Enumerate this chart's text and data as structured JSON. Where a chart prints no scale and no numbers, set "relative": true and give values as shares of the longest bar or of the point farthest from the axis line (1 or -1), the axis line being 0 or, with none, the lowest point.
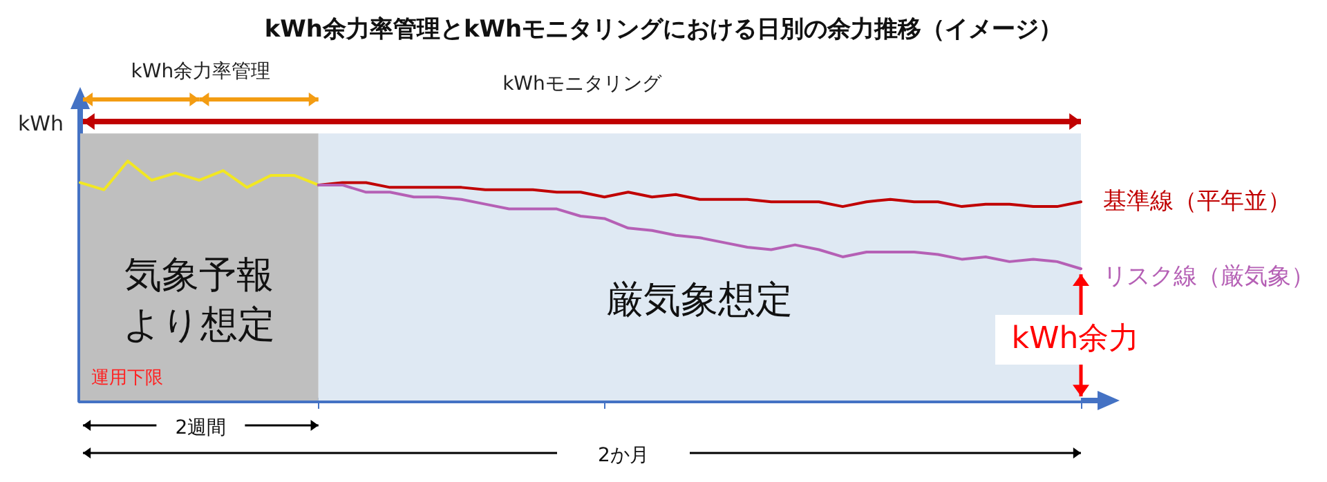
{
  "chart_data": {
    "type": "line",
    "title": "kWh余力率管理とkWhモニタリングにおける日別の余力推移（イメージ）",
    "ylabel": "kWh",
    "relative": true,
    "grid": false,
    "legend": "right",
    "marker": "none",
    "line_style": "solid",
    "categories": [
      null,
      null,
      null,
      null,
      null,
      null,
      null,
      null,
      null,
      null,
      null,
      null,
      null,
      null,
      null,
      null,
      null,
      null,
      null,
      null,
      null,
      null,
      null,
      null,
      null,
      null,
      null,
      null,
      null,
      null,
      null,
      null,
      null,
      null,
      null,
      null,
      null,
      null,
      null,
      null,
      null,
      null,
      null
    ],
    "series": [
      {
        "color": "#f2e722",
        "values": [
          0.91,
          0.88,
          1.0,
          0.92,
          0.95,
          0.92,
          0.96,
          0.89,
          0.94,
          0.94,
          0.9,
          null,
          null,
          null,
          null,
          null,
          null,
          null,
          null,
          null,
          null,
          null,
          null,
          null,
          null,
          null,
          null,
          null,
          null,
          null,
          null,
          null,
          null,
          null,
          null,
          null,
          null,
          null,
          null,
          null,
          null,
          null,
          null
        ]
      },
      {
        "name": "基準線（平年並）",
        "color": "#c00000",
        "values": [
          null,
          null,
          null,
          null,
          null,
          null,
          null,
          null,
          null,
          null,
          0.9,
          0.91,
          0.91,
          0.89,
          0.89,
          0.89,
          0.89,
          0.88,
          0.88,
          0.88,
          0.87,
          0.87,
          0.85,
          0.87,
          0.85,
          0.86,
          0.84,
          0.84,
          0.84,
          0.83,
          0.83,
          0.83,
          0.81,
          0.83,
          0.84,
          0.83,
          0.83,
          0.81,
          0.82,
          0.82,
          0.81,
          0.81,
          0.83
        ]
      },
      {
        "name": "リスク線（厳気象）",
        "color": "#b560b5",
        "values": [
          null,
          null,
          null,
          null,
          null,
          null,
          null,
          null,
          null,
          null,
          0.9,
          0.9,
          0.87,
          0.87,
          0.85,
          0.85,
          0.84,
          0.82,
          0.8,
          0.8,
          0.8,
          0.77,
          0.76,
          0.72,
          0.71,
          0.69,
          0.68,
          0.66,
          0.64,
          0.63,
          0.65,
          0.63,
          0.6,
          0.62,
          0.62,
          0.62,
          0.61,
          0.59,
          0.6,
          0.58,
          0.59,
          0.58,
          0.55
        ]
      }
    ],
    "annotations": [
      "kWh余力率管理",
      "kWhモニタリング",
      "運用下限",
      "2週間",
      "2か月",
      "kWh余力",
      "気象予報より想定",
      "厳気象想定"
    ]
  }
}
